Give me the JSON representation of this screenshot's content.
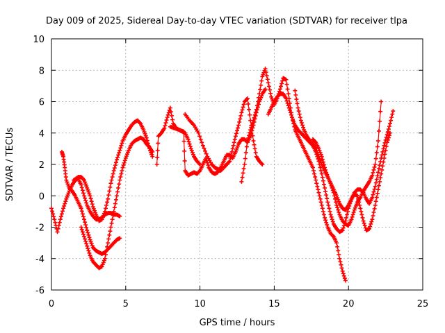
{
  "chart_data": {
    "type": "scatter",
    "title": "Day 009 of 2025, Sidereal Day-to-day VTEC variation (SDTVAR) for receiver tlpa",
    "xlabel": "GPS time / hours",
    "ylabel": "SDTVAR / TECUs",
    "xlim": [
      0,
      25
    ],
    "ylim": [
      -6,
      10
    ],
    "xticks": [
      "0",
      "5",
      "10",
      "15",
      "20",
      "25"
    ],
    "yticks": [
      "-6",
      "-4",
      "-2",
      "0",
      "2",
      "4",
      "6",
      "8",
      "10"
    ],
    "grid": true,
    "marker": "+",
    "series_color": "#ff0000",
    "series": [
      {
        "x": [
          0.0,
          0.2,
          0.4,
          0.6,
          0.8,
          1.0,
          1.2,
          1.4,
          1.6,
          1.8,
          2.0,
          2.2,
          2.4,
          2.6,
          2.8,
          3.0,
          3.2,
          3.4,
          3.6,
          3.8,
          4.0,
          4.2,
          4.4,
          4.6
        ],
        "y": [
          -0.8,
          -1.5,
          -2.3,
          -1.5,
          -0.8,
          -0.2,
          0.3,
          0.7,
          1.0,
          1.1,
          0.7,
          0.0,
          -0.6,
          -1.0,
          -1.3,
          -1.5,
          -1.5,
          -1.4,
          -1.2,
          -1.1,
          -1.1,
          -1.2,
          -1.2,
          -1.3
        ]
      },
      {
        "x": [
          0.7,
          0.8,
          0.9,
          1.0,
          1.2,
          1.4,
          1.6,
          1.8,
          2.0,
          2.2,
          2.4,
          2.6,
          2.8,
          3.0,
          3.2,
          3.4,
          3.6,
          3.8,
          4.0,
          4.2,
          4.4,
          4.6
        ],
        "y": [
          2.8,
          2.5,
          1.8,
          1.0,
          0.5,
          0.3,
          0.0,
          -0.4,
          -0.8,
          -1.5,
          -2.2,
          -2.8,
          -3.3,
          -3.5,
          -3.6,
          -3.7,
          -3.6,
          -3.4,
          -3.2,
          -3.0,
          -2.8,
          -2.7
        ]
      },
      {
        "x": [
          2.0,
          2.2,
          2.4,
          2.6,
          2.8,
          3.0,
          3.2,
          3.4,
          3.6,
          3.8,
          4.0,
          4.2,
          4.4,
          4.6,
          4.8,
          5.0,
          5.2,
          5.4,
          5.6,
          5.8,
          6.0,
          6.2,
          6.4,
          6.6,
          6.8
        ],
        "y": [
          -2.0,
          -2.6,
          -3.2,
          -3.8,
          -4.2,
          -4.4,
          -4.6,
          -4.5,
          -4.0,
          -3.0,
          -2.0,
          -1.0,
          0.0,
          1.0,
          1.8,
          2.4,
          2.9,
          3.3,
          3.5,
          3.6,
          3.7,
          3.6,
          3.3,
          3.1,
          2.8
        ]
      },
      {
        "x": [
          1.5,
          1.8,
          2.0,
          2.2,
          2.4,
          2.6,
          2.8,
          3.0,
          3.2,
          3.4,
          3.6,
          3.8,
          4.0,
          4.2,
          4.4,
          4.6,
          4.8,
          5.0,
          5.2,
          5.4,
          5.6,
          5.8,
          6.0,
          6.2,
          6.4,
          6.6,
          6.8
        ],
        "y": [
          1.0,
          1.2,
          1.2,
          1.0,
          0.5,
          0.0,
          -0.7,
          -1.2,
          -1.6,
          -1.5,
          -1.0,
          -0.2,
          0.8,
          1.6,
          2.3,
          2.9,
          3.5,
          3.9,
          4.2,
          4.5,
          4.7,
          4.8,
          4.6,
          4.2,
          3.7,
          3.0,
          2.5
        ]
      },
      {
        "x": [
          7.1,
          7.2,
          7.4,
          7.6,
          7.8,
          8.0,
          8.2,
          8.4,
          8.6,
          8.8,
          9.0,
          9.2,
          9.4,
          9.6,
          9.8,
          10.0
        ],
        "y": [
          2.0,
          3.8,
          4.0,
          4.3,
          5.0,
          5.6,
          4.6,
          4.3,
          4.2,
          4.1,
          4.0,
          3.6,
          3.0,
          2.5,
          2.2,
          2.0
        ]
      },
      {
        "x": [
          8.0,
          8.3,
          8.6,
          8.9,
          9.0,
          9.2,
          9.4,
          9.6,
          9.8,
          10.0,
          10.2,
          10.4,
          10.6,
          10.8,
          11.0,
          11.2,
          11.4,
          11.6,
          11.8,
          12.0,
          12.2,
          12.4,
          12.6,
          12.8,
          13.0,
          13.2,
          13.4,
          13.6,
          13.8,
          14.0,
          14.2,
          14.4
        ],
        "y": [
          4.4,
          4.3,
          4.2,
          4.1,
          1.6,
          1.3,
          1.4,
          1.5,
          1.4,
          1.6,
          2.0,
          2.4,
          1.8,
          1.5,
          1.4,
          1.5,
          1.8,
          2.2,
          2.6,
          2.6,
          2.4,
          2.8,
          3.3,
          3.6,
          3.6,
          3.4,
          3.8,
          4.5,
          5.3,
          6.0,
          6.5,
          6.8
        ]
      },
      {
        "x": [
          9.0,
          9.3,
          9.6,
          9.9,
          10.2,
          10.5,
          10.8,
          11.0,
          11.2,
          11.4,
          11.6,
          11.8,
          12.0,
          12.2,
          12.4,
          12.6,
          12.8,
          13.0,
          13.2,
          13.4,
          13.6,
          13.8,
          14.0,
          14.2
        ],
        "y": [
          5.2,
          4.8,
          4.5,
          4.0,
          3.2,
          2.5,
          2.0,
          1.8,
          1.7,
          1.6,
          1.8,
          2.0,
          2.2,
          3.0,
          3.8,
          4.5,
          5.3,
          6.0,
          6.2,
          4.8,
          3.5,
          2.5,
          2.2,
          2.0
        ]
      },
      {
        "x": [
          12.8,
          13.0,
          13.2,
          13.4,
          13.6,
          13.8,
          14.0,
          14.2,
          14.4,
          14.6,
          14.8,
          15.0,
          15.2,
          15.4,
          15.6,
          15.8,
          16.0,
          16.2,
          16.4,
          16.6,
          16.8,
          17.0,
          17.2,
          17.4,
          17.6,
          17.8,
          18.0,
          18.2,
          18.4,
          18.6,
          18.8,
          19.0,
          19.2,
          19.4,
          19.6,
          19.8
        ],
        "y": [
          0.9,
          2.0,
          3.5,
          4.2,
          4.8,
          5.5,
          6.5,
          7.6,
          8.1,
          7.2,
          6.3,
          5.8,
          6.2,
          6.8,
          7.5,
          7.4,
          6.2,
          5.0,
          4.2,
          3.8,
          3.4,
          3.0,
          2.6,
          2.2,
          1.8,
          1.0,
          0.2,
          -0.6,
          -1.4,
          -2.0,
          -2.4,
          -2.6,
          -3.0,
          -4.0,
          -4.8,
          -5.4
        ]
      },
      {
        "x": [
          14.6,
          14.8,
          15.0,
          15.2,
          15.4,
          15.6,
          15.8,
          16.0,
          16.2,
          16.4,
          16.6,
          16.8,
          17.0,
          17.2,
          17.4,
          17.6,
          17.8,
          18.0,
          18.2,
          18.4,
          18.6,
          18.8,
          19.0,
          19.2,
          19.4,
          19.6,
          19.8,
          20.0,
          20.2,
          20.4,
          20.6,
          20.8,
          21.0,
          21.2,
          21.4,
          21.6,
          21.8,
          22.0,
          22.2,
          22.4,
          22.6,
          22.8
        ],
        "y": [
          5.2,
          5.6,
          6.0,
          6.3,
          6.5,
          6.5,
          6.2,
          5.6,
          5.0,
          4.5,
          4.2,
          4.0,
          3.8,
          3.6,
          3.4,
          3.2,
          2.8,
          2.2,
          1.4,
          0.5,
          -0.4,
          -1.2,
          -1.8,
          -2.1,
          -2.3,
          -2.2,
          -1.6,
          -0.8,
          -0.2,
          0.1,
          0.0,
          -0.8,
          -1.6,
          -2.2,
          -2.1,
          -1.5,
          -0.6,
          0.4,
          1.4,
          2.4,
          3.4,
          4.0
        ]
      },
      {
        "x": [
          16.4,
          16.6,
          16.8,
          17.0,
          17.2,
          17.4,
          17.6,
          17.8,
          18.0,
          18.2,
          18.4,
          18.6,
          18.8,
          19.0,
          19.2,
          19.4,
          19.6,
          19.8,
          20.0,
          20.2,
          20.4,
          20.6,
          20.8,
          21.0,
          21.2,
          21.4,
          21.6,
          21.8,
          22.0,
          22.2,
          22.4,
          22.6,
          22.8,
          23.0
        ],
        "y": [
          6.7,
          5.6,
          4.8,
          4.2,
          3.8,
          3.5,
          3.3,
          3.0,
          2.5,
          2.0,
          1.6,
          1.2,
          0.8,
          0.4,
          0.0,
          -0.5,
          -0.8,
          -0.9,
          -0.6,
          -0.2,
          0.2,
          0.4,
          0.4,
          0.2,
          -0.2,
          -0.5,
          -0.1,
          0.6,
          1.5,
          2.4,
          3.2,
          3.9,
          4.6,
          5.4
        ]
      },
      {
        "x": [
          17.6,
          17.8,
          18.0,
          18.2,
          18.4,
          18.6,
          18.8,
          19.0,
          19.2,
          19.4,
          19.6,
          19.8,
          20.0,
          20.2,
          20.4,
          20.6,
          20.8,
          21.0,
          21.2,
          21.4,
          21.6,
          21.8,
          22.0,
          22.2
        ],
        "y": [
          3.6,
          3.4,
          3.0,
          2.5,
          1.8,
          1.2,
          0.8,
          0.2,
          -0.6,
          -1.2,
          -1.6,
          -1.8,
          -1.9,
          -1.5,
          -0.9,
          -0.4,
          -0.1,
          0.3,
          0.6,
          0.9,
          1.3,
          2.0,
          3.5,
          6.0
        ]
      }
    ]
  }
}
